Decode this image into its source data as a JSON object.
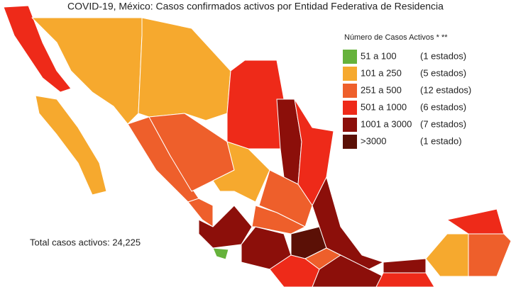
{
  "title": "COVID-19, México: Casos confirmados activos por Entidad Federativa de Residencia",
  "legend": {
    "title": "Número de Casos Activos * **",
    "items": [
      {
        "range": "51 a 100",
        "count": "(1 estados)",
        "color": "#66b23b"
      },
      {
        "range": "101 a 250",
        "count": "(5 estados)",
        "color": "#f6a92e"
      },
      {
        "range": "251 a 500",
        "count": "(12 estados)",
        "color": "#ee5f2b"
      },
      {
        "range": "501 a 1000",
        "count": "(6 estados)",
        "color": "#ee2a19"
      },
      {
        "range": "1001 a 3000",
        "count": "(7 estados)",
        "color": "#8c0f0a"
      },
      {
        "range": ">3000",
        "count": "(1 estado)",
        "color": "#5b1006"
      }
    ]
  },
  "total": "Total casos activos: 24,225"
}
